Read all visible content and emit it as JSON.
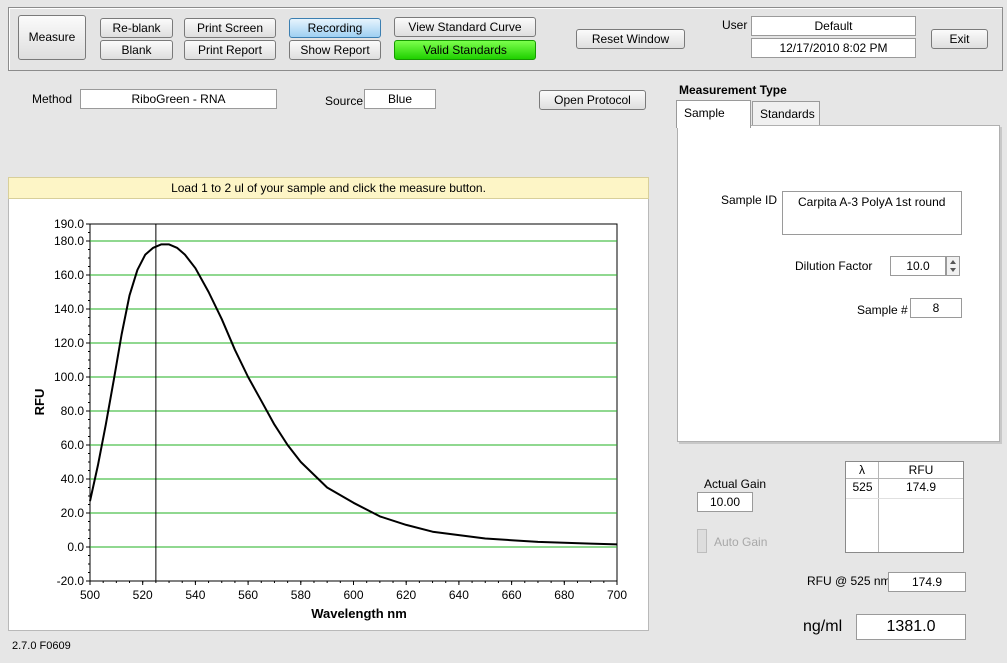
{
  "toolbar": {
    "measure": "Measure",
    "reblank": "Re-blank",
    "blank": "Blank",
    "print_screen": "Print Screen",
    "print_report": "Print Report",
    "recording": "Recording",
    "show_report": "Show Report",
    "view_standard_curve": "View Standard Curve",
    "valid_standards": "Valid Standards",
    "reset_window": "Reset Window",
    "user_label": "User",
    "user_value": "Default",
    "datetime": "12/17/2010  8:02 PM",
    "exit": "Exit"
  },
  "method": {
    "label": "Method",
    "value": "RiboGreen - RNA"
  },
  "source": {
    "label": "Source",
    "value": "Blue"
  },
  "open_protocol": "Open Protocol",
  "measurement_type": {
    "title": "Measurement Type",
    "tabs": [
      "Sample",
      "Standards"
    ],
    "active_tab": "Sample",
    "sample_id_label": "Sample ID",
    "sample_id_value": "Carpita A-3 PolyA 1st round",
    "dilution_label": "Dilution Factor",
    "dilution_value": "10.0",
    "sample_num_label": "Sample #",
    "sample_num_value": "8"
  },
  "banner": "Load 1 to 2 ul of your sample and click the measure button.",
  "gain": {
    "actual_label": "Actual Gain",
    "actual_value": "10.00",
    "auto_label": "Auto Gain"
  },
  "rfu_table": {
    "headers": [
      "λ",
      "RFU"
    ],
    "rows": [
      [
        "525",
        "174.9"
      ]
    ]
  },
  "rfu_at": {
    "label": "RFU @ 525 nm",
    "value": "174.9"
  },
  "concentration": {
    "label": "ng/ml",
    "value": "1381.0"
  },
  "version": "2.7.0 F0609",
  "chart_data": {
    "type": "line",
    "title": "",
    "xlabel": "Wavelength  nm",
    "ylabel": "RFU",
    "xlim": [
      500,
      700
    ],
    "ylim": [
      -20,
      190
    ],
    "x_ticks": [
      "500",
      "520",
      "540",
      "560",
      "580",
      "600",
      "620",
      "640",
      "660",
      "680",
      "700"
    ],
    "y_ticks": [
      "190.0",
      "180.0",
      "160.0",
      "140.0",
      "120.0",
      "100.0",
      "80.0",
      "60.0",
      "40.0",
      "20.0",
      "0.0",
      "-20.0"
    ],
    "grid": true,
    "cursor_x": 525,
    "series": [
      {
        "x": [
          500,
          503,
          506,
          509,
          512,
          515,
          518,
          521,
          524,
          527,
          530,
          533,
          536,
          540,
          545,
          550,
          555,
          560,
          565,
          570,
          575,
          580,
          590,
          600,
          610,
          620,
          630,
          640,
          650,
          660,
          670,
          680,
          690,
          700
        ],
        "y": [
          27,
          48,
          72,
          98,
          125,
          148,
          163,
          172,
          176,
          178,
          178,
          176,
          172,
          164,
          150,
          134,
          116,
          100,
          86,
          72,
          60,
          50,
          35,
          26,
          18,
          13,
          9,
          7,
          5,
          4,
          3,
          2.5,
          2,
          1.5
        ]
      }
    ]
  }
}
